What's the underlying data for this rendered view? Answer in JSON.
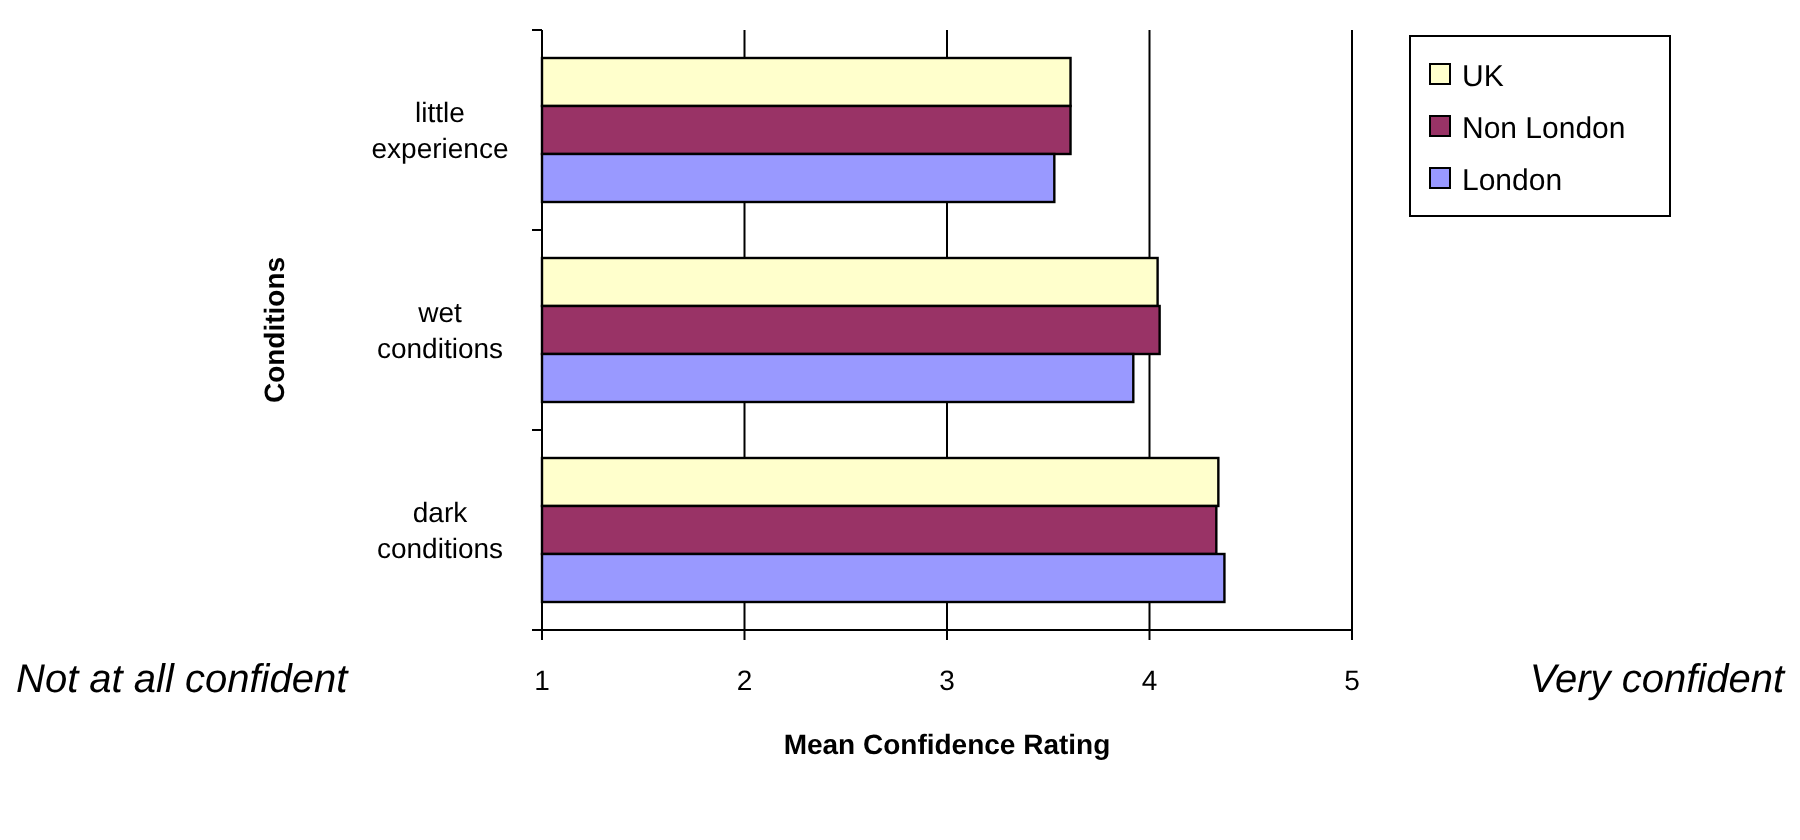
{
  "chart_data": {
    "type": "bar",
    "orientation": "horizontal",
    "xlabel": "Mean Confidence Rating",
    "ylabel": "Conditions",
    "categories": [
      "little experience",
      "wet conditions",
      "dark conditions"
    ],
    "series": [
      {
        "name": "UK",
        "color": "#ffffcc",
        "values": [
          3.61,
          4.04,
          4.34
        ]
      },
      {
        "name": "Non London",
        "color": "#993366",
        "values": [
          3.61,
          4.05,
          4.33
        ]
      },
      {
        "name": "London",
        "color": "#9999ff",
        "values": [
          3.53,
          3.92,
          4.37
        ]
      }
    ],
    "xlim": [
      1,
      5
    ],
    "xticks": [
      1,
      2,
      3,
      4,
      5
    ],
    "grid": "x",
    "legend": "top right",
    "annotations": [
      "Not at all confident",
      "Very confident"
    ]
  }
}
